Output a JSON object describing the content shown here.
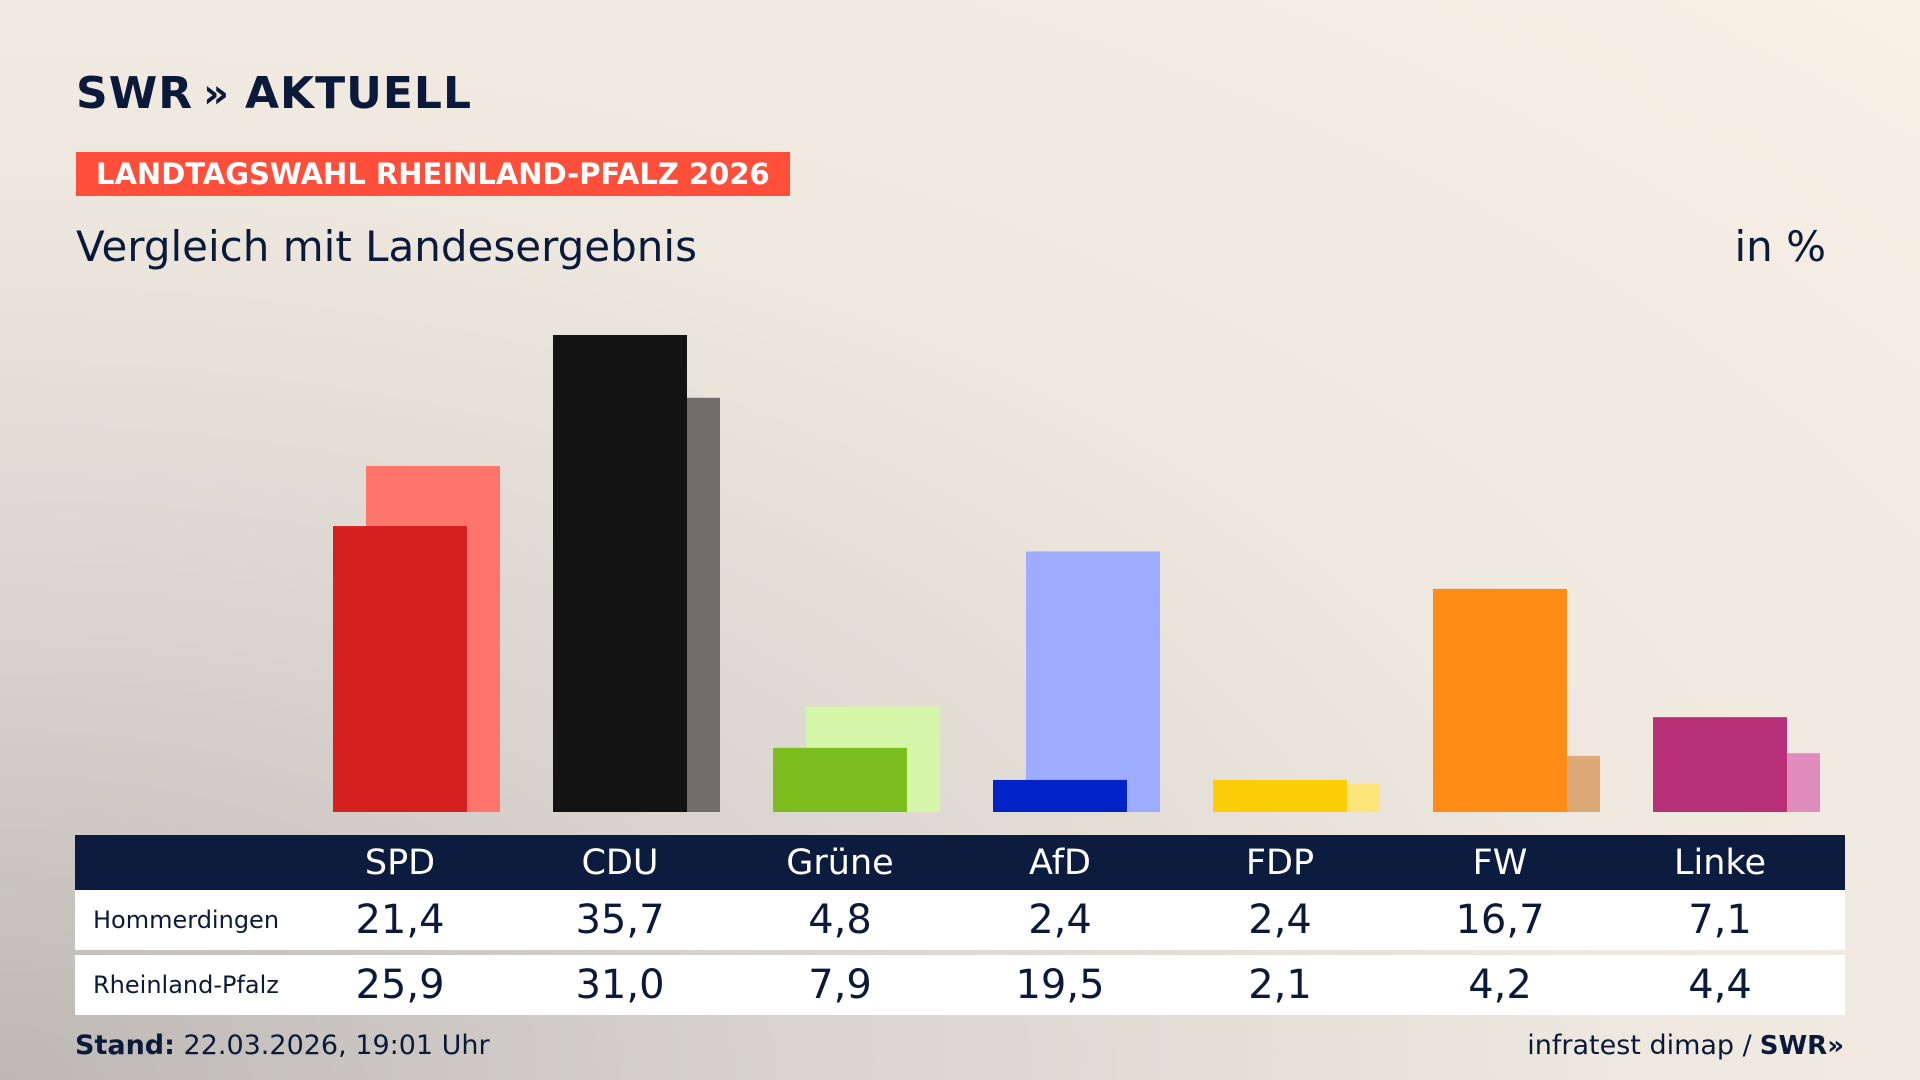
{
  "header": {
    "logo_text": "SWR",
    "logo_chevrons": "»",
    "logo_suffix": "AKTUELL",
    "banner": "LANDTAGSWAHL RHEINLAND-PFALZ 2026",
    "subtitle": "Vergleich mit Landesergebnis",
    "unit": "in %"
  },
  "colors": {
    "navy": "#0c1c3e",
    "banner": "#ff4f3a"
  },
  "chart_data": {
    "type": "bar",
    "categories": [
      "SPD",
      "CDU",
      "Grüne",
      "AfD",
      "FDP",
      "FW",
      "Linke"
    ],
    "series": [
      {
        "name": "Hommerdingen",
        "values": [
          21.4,
          35.7,
          4.8,
          2.4,
          2.4,
          16.7,
          7.1
        ],
        "labels": [
          "21,4",
          "35,7",
          "4,8",
          "2,4",
          "2,4",
          "16,7",
          "7,1"
        ],
        "colors": [
          "#d6201f",
          "#131313",
          "#7bbe1e",
          "#0123c8",
          "#fecd0a",
          "#ff8b17",
          "#b83178"
        ]
      },
      {
        "name": "Rheinland-Pfalz",
        "values": [
          25.9,
          31.0,
          7.9,
          19.5,
          2.1,
          4.2,
          4.4
        ],
        "labels": [
          "25,9",
          "31,0",
          "7,9",
          "19,5",
          "2,1",
          "4,2",
          "4,4"
        ],
        "colors": [
          "#ff746b",
          "#706d6b",
          "#d5f5a8",
          "#9dacfe",
          "#fee47a",
          "#dcaa76",
          "#e08dbd"
        ]
      }
    ],
    "ylim": [
      0,
      36
    ]
  },
  "footer": {
    "stand_label": "Stand:",
    "stand_value": "22.03.2026, 19:01 Uhr",
    "source": "infratest dimap /",
    "source_logo": "SWR»"
  }
}
